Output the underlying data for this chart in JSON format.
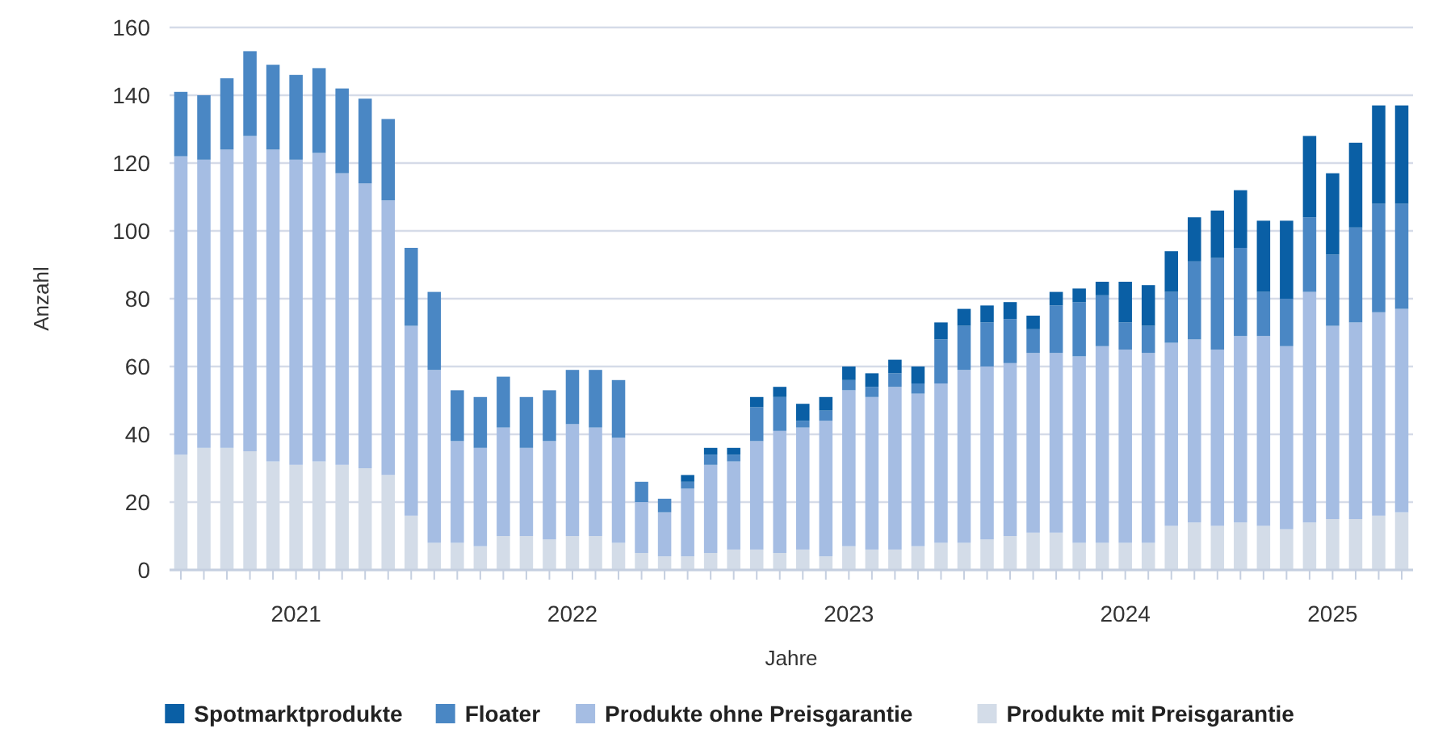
{
  "chart_data": {
    "type": "bar",
    "stacked": true,
    "xlabel": "Jahre",
    "ylabel": "Anzahl",
    "ylim": [
      0,
      160
    ],
    "yticks": [
      0,
      20,
      40,
      60,
      80,
      100,
      120,
      140,
      160
    ],
    "grid": "y",
    "legend": "bottom",
    "categories": [
      null,
      null,
      null,
      null,
      null,
      "2021",
      null,
      null,
      null,
      null,
      null,
      null,
      null,
      null,
      null,
      null,
      null,
      "2022",
      null,
      null,
      null,
      null,
      null,
      null,
      null,
      null,
      null,
      null,
      null,
      "2023",
      null,
      null,
      null,
      null,
      null,
      null,
      null,
      null,
      null,
      null,
      null,
      "2024",
      null,
      null,
      null,
      null,
      null,
      null,
      null,
      null,
      "2025",
      null,
      null,
      null
    ],
    "series": [
      {
        "name": "Produkte mit Preisgarantie",
        "color": "#d3dce8",
        "values": [
          34,
          36,
          36,
          35,
          32,
          31,
          32,
          31,
          30,
          28,
          16,
          8,
          8,
          7,
          10,
          10,
          9,
          10,
          10,
          8,
          5,
          4,
          4,
          5,
          6,
          6,
          5,
          6,
          4,
          7,
          6,
          6,
          7,
          8,
          8,
          9,
          10,
          11,
          11,
          8,
          8,
          8,
          8,
          13,
          14,
          13,
          14,
          13,
          12,
          14,
          15,
          15,
          16,
          17
        ]
      },
      {
        "name": "Produkte ohne Preisgarantie",
        "color": "#a5bde3",
        "values": [
          88,
          85,
          88,
          93,
          92,
          90,
          91,
          86,
          84,
          81,
          56,
          51,
          30,
          29,
          32,
          26,
          29,
          33,
          32,
          31,
          15,
          13,
          20,
          26,
          26,
          32,
          36,
          36,
          40,
          46,
          45,
          48,
          45,
          47,
          51,
          51,
          51,
          53,
          53,
          55,
          58,
          57,
          56,
          54,
          54,
          52,
          55,
          56,
          54,
          68,
          57,
          58,
          60,
          60
        ]
      },
      {
        "name": "Floater",
        "color": "#4a87c4",
        "values": [
          19,
          19,
          21,
          25,
          25,
          25,
          25,
          25,
          25,
          24,
          23,
          23,
          15,
          15,
          15,
          15,
          15,
          16,
          17,
          17,
          6,
          4,
          2,
          3,
          2,
          10,
          10,
          2,
          3,
          3,
          3,
          4,
          3,
          13,
          13,
          13,
          13,
          7,
          14,
          16,
          15,
          8,
          8,
          15,
          23,
          27,
          26,
          13,
          14,
          22,
          21,
          28,
          32,
          31
        ]
      },
      {
        "name": "Spotmarktprodukte",
        "color": "#0a5fa5",
        "values": [
          0,
          0,
          0,
          0,
          0,
          0,
          0,
          0,
          0,
          0,
          0,
          0,
          0,
          0,
          0,
          0,
          0,
          0,
          0,
          0,
          0,
          0,
          2,
          2,
          2,
          3,
          3,
          5,
          4,
          4,
          4,
          4,
          5,
          5,
          5,
          5,
          5,
          4,
          4,
          4,
          4,
          12,
          12,
          12,
          13,
          14,
          17,
          21,
          23,
          24,
          24,
          25,
          29,
          29
        ]
      }
    ]
  }
}
